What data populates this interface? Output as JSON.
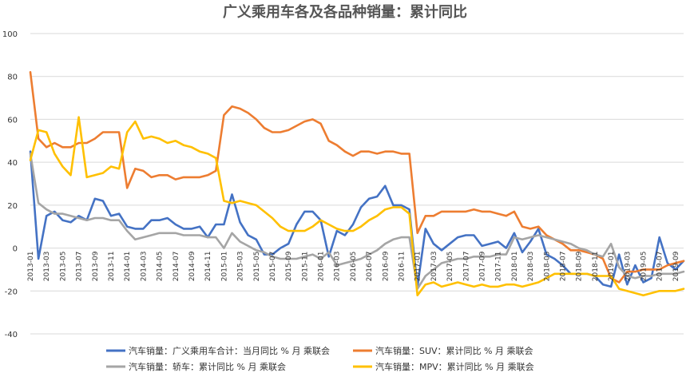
{
  "chart_data": {
    "type": "line",
    "title": "广义乘用车各及各品种销量：累计同比",
    "xlabel": "",
    "ylabel": "",
    "ylim": [
      -40,
      100
    ],
    "yticks": [
      -40,
      -20,
      0,
      20,
      40,
      60,
      80,
      100
    ],
    "grid": true,
    "legend_position": "bottom",
    "x": [
      "2013-01",
      "2013-02",
      "2013-03",
      "2013-04",
      "2013-05",
      "2013-06",
      "2013-07",
      "2013-08",
      "2013-09",
      "2013-10",
      "2013-11",
      "2013-12",
      "2014-01",
      "2014-02",
      "2014-03",
      "2014-04",
      "2014-05",
      "2014-06",
      "2014-07",
      "2014-08",
      "2014-09",
      "2014-10",
      "2014-11",
      "2014-12",
      "2015-01",
      "2015-02",
      "2015-03",
      "2015-04",
      "2015-05",
      "2015-06",
      "2015-07",
      "2015-08",
      "2015-09",
      "2015-10",
      "2015-11",
      "2015-12",
      "2016-01",
      "2016-02",
      "2016-03",
      "2016-04",
      "2016-05",
      "2016-06",
      "2016-07",
      "2016-08",
      "2016-09",
      "2016-10",
      "2016-11",
      "2016-12",
      "2017-01",
      "2017-02",
      "2017-03",
      "2017-04",
      "2017-05",
      "2017-06",
      "2017-07",
      "2017-08",
      "2017-09",
      "2017-10",
      "2017-11",
      "2017-12",
      "2018-01",
      "2018-02",
      "2018-03",
      "2018-04",
      "2018-05",
      "2018-06",
      "2018-07",
      "2018-08",
      "2018-09",
      "2018-10",
      "2018-11",
      "2018-12",
      "2019-01",
      "2019-02",
      "2019-03",
      "2019-04",
      "2019-05",
      "2019-06",
      "2019-07",
      "2019-08",
      "2019-09",
      "2019-10"
    ],
    "xtick_labels": [
      "2013-01",
      "2013-03",
      "2013-05",
      "2013-07",
      "2013-09",
      "2013-11",
      "2014-01",
      "2014-03",
      "2014-05",
      "2014-07",
      "2014-09",
      "2014-11",
      "2015-01",
      "2015-03",
      "2015-05",
      "2015-07",
      "2015-09",
      "2015-11",
      "2016-01",
      "2016-03",
      "2016-05",
      "2016-07",
      "2016-09",
      "2016-11",
      "2017-01",
      "2017-03",
      "2017-05",
      "2017-07",
      "2017-09",
      "2017-11",
      "2018-01",
      "2018-03",
      "2018-05",
      "2018-07",
      "2018-09",
      "2018-11",
      "2019-01",
      "2019-03",
      "2019-05",
      "2019-07",
      "2019-09"
    ],
    "series": [
      {
        "name": "汽车销量：广义乘用车合计：当月同比 % 月 乘联会",
        "color": "#4472c4",
        "values": [
          45,
          -5,
          15,
          17,
          13,
          12,
          15,
          13,
          23,
          22,
          15,
          16,
          10,
          9,
          9,
          13,
          13,
          14,
          11,
          9,
          9,
          10,
          5,
          11,
          11,
          25,
          12,
          6,
          4,
          -3,
          -3,
          0,
          2,
          11,
          17,
          17,
          13,
          -4,
          8,
          6,
          11,
          19,
          23,
          24,
          29,
          20,
          20,
          18,
          -18,
          9,
          2,
          -1,
          2,
          5,
          6,
          6,
          1,
          2,
          3,
          0,
          7,
          -2,
          3,
          9,
          -3,
          -5,
          -8,
          -12,
          -12,
          -12,
          -13,
          -17,
          -18,
          -3,
          -17,
          -8,
          -16,
          -14,
          5,
          -7,
          -10,
          -6
        ]
      },
      {
        "name": "汽车销量：SUV：累计同比 % 月 乘联会",
        "color": "#ed7d31",
        "values": [
          82,
          51,
          47,
          49,
          47,
          47,
          49,
          49,
          51,
          54,
          54,
          54,
          28,
          37,
          36,
          33,
          34,
          34,
          32,
          33,
          33,
          33,
          34,
          36,
          62,
          66,
          65,
          63,
          60,
          56,
          54,
          54,
          55,
          57,
          59,
          60,
          58,
          50,
          48,
          45,
          43,
          45,
          45,
          44,
          45,
          45,
          44,
          44,
          7,
          15,
          15,
          17,
          17,
          17,
          17,
          18,
          17,
          17,
          16,
          15,
          17,
          10,
          9,
          10,
          6,
          4,
          2,
          -1,
          -1,
          -2,
          -3,
          -5,
          -14,
          -16,
          -11,
          -11,
          -10,
          -10,
          -10,
          -8,
          -7,
          -6
        ]
      },
      {
        "name": "汽车销量：轿车：累计同比 % 月 乘联会",
        "color": "#a5a5a5",
        "values": [
          44,
          21,
          18,
          16,
          16,
          15,
          14,
          13,
          14,
          14,
          13,
          13,
          8,
          4,
          5,
          6,
          7,
          7,
          7,
          6,
          6,
          6,
          5,
          5,
          0,
          7,
          3,
          1,
          -1,
          -2,
          -4,
          -5,
          -5,
          -5,
          -4,
          -3,
          -5,
          -2,
          -8,
          -7,
          -6,
          -5,
          -3,
          -1,
          2,
          4,
          5,
          5,
          -19,
          -13,
          -10,
          -7,
          -6,
          -5,
          -5,
          -4,
          -4,
          -4,
          -3,
          -3,
          5,
          4,
          5,
          6,
          5,
          4,
          3,
          2,
          0,
          -1,
          -3,
          -4,
          2,
          -9,
          -13,
          -14,
          -13,
          -13,
          -12,
          -12,
          -12,
          -11
        ]
      },
      {
        "name": "汽车销量：MPV：累计同比 % 月 乘联会",
        "color": "#ffc000",
        "values": [
          41,
          55,
          54,
          44,
          38,
          34,
          61,
          33,
          34,
          35,
          38,
          37,
          54,
          59,
          51,
          52,
          51,
          49,
          50,
          48,
          47,
          45,
          44,
          42,
          22,
          21,
          22,
          21,
          20,
          17,
          14,
          10,
          8,
          8,
          8,
          10,
          13,
          11,
          9,
          8,
          8,
          10,
          13,
          15,
          18,
          19,
          19,
          16,
          -22,
          -17,
          -16,
          -18,
          -17,
          -16,
          -17,
          -18,
          -17,
          -18,
          -18,
          -17,
          -17,
          -18,
          -17,
          -16,
          -14,
          -12,
          -12,
          -12,
          -12,
          -12,
          -13,
          -13,
          -13,
          -19,
          -20,
          -21,
          -22,
          -21,
          -20,
          -20,
          -20,
          -19
        ]
      }
    ]
  }
}
